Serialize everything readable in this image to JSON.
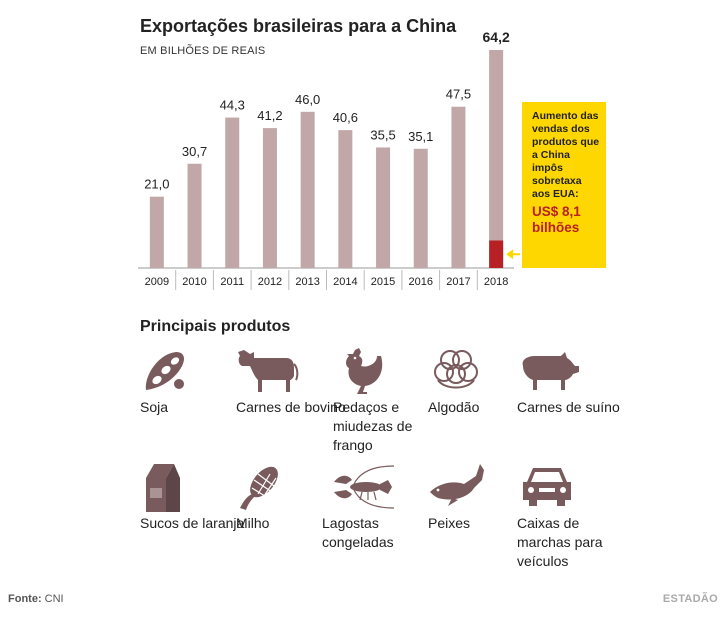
{
  "header": {
    "title": "Exportações brasileiras para a China",
    "subtitle": "EM BILHÕES DE REAIS"
  },
  "chart_data": {
    "type": "bar",
    "title": "Exportações brasileiras para a China",
    "ylabel": "EM BILHÕES DE REAIS",
    "categories": [
      "2009",
      "2010",
      "2011",
      "2012",
      "2013",
      "2014",
      "2015",
      "2016",
      "2017",
      "2018"
    ],
    "values": [
      21.0,
      30.7,
      44.3,
      41.2,
      46.0,
      40.6,
      35.5,
      35.1,
      47.5,
      64.2
    ],
    "labels": [
      "21,0",
      "30,7",
      "44,3",
      "41,2",
      "46,0",
      "40,6",
      "35,5",
      "35,1",
      "47,5",
      "64,2"
    ],
    "highlight": {
      "category": "2018",
      "value": 8.1,
      "color": "#b72025"
    },
    "bar_color": "#c2a7a9",
    "ylim": [
      0,
      70
    ],
    "grid": false
  },
  "callout": {
    "text": "Aumento das vendas dos produtos que a China impôs sobretaxa aos EUA:",
    "value": "US$ 8,1 bilhões"
  },
  "products": {
    "title": "Principais produtos",
    "icon_color": "#7a5b5d",
    "items": [
      {
        "label": "Soja",
        "icon": "soy-icon"
      },
      {
        "label": "Carnes de bovino",
        "icon": "cow-icon"
      },
      {
        "label": "Pedaços e miudezas de frango",
        "icon": "chicken-icon"
      },
      {
        "label": "Algodão",
        "icon": "cotton-icon"
      },
      {
        "label": "Carnes de suíno",
        "icon": "pig-icon"
      },
      {
        "label": "Sucos de laranja",
        "icon": "juice-carton-icon"
      },
      {
        "label": "Milho",
        "icon": "corn-icon"
      },
      {
        "label": "Lagostas congeladas",
        "icon": "lobster-icon"
      },
      {
        "label": "Peixes",
        "icon": "fish-icon"
      },
      {
        "label": "Caixas de marchas para veículos",
        "icon": "car-icon"
      }
    ]
  },
  "footer": {
    "source_label": "Fonte:",
    "source": "CNI",
    "brand": "ESTADÃO"
  }
}
